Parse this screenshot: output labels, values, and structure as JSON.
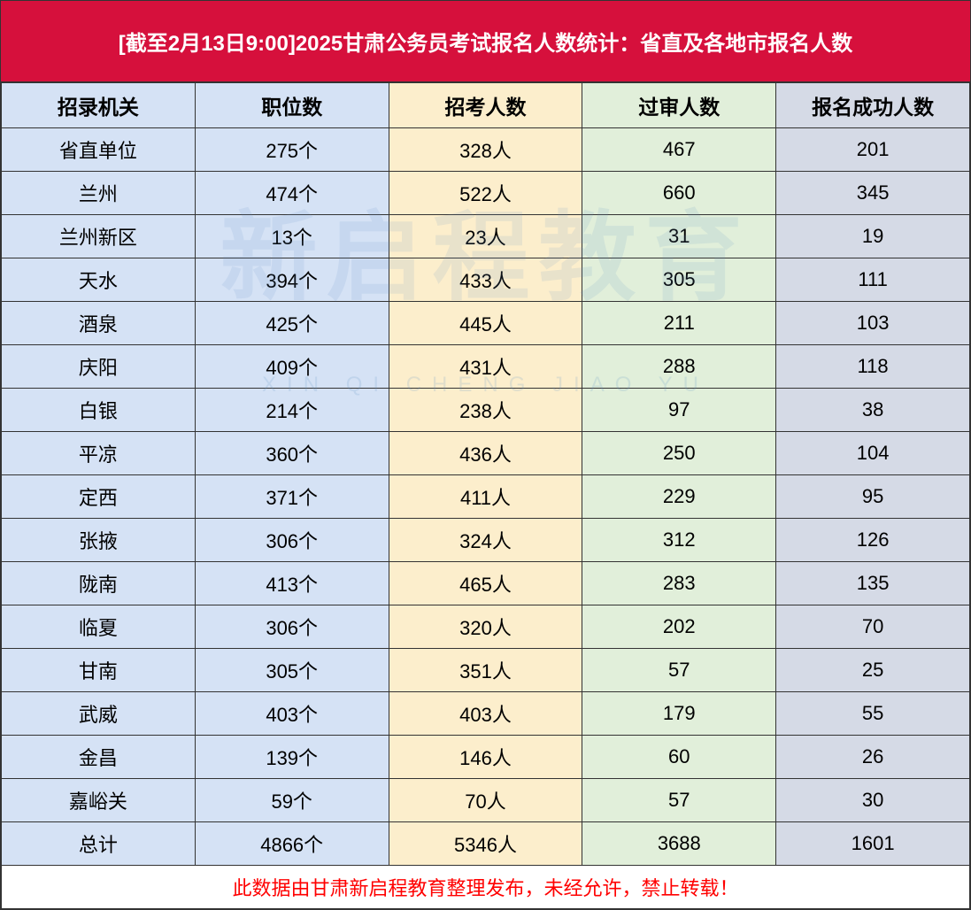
{
  "title": "[截至2月13日9:00]2025甘肃公务员考试报名人数统计：省直及各地市报名人数",
  "columns": [
    "招录机关",
    "职位数",
    "招考人数",
    "过审人数",
    "报名成功人数"
  ],
  "column_colors": [
    "#d5e2f5",
    "#d5e2f5",
    "#fceecc",
    "#e1efda",
    "#d5dae6"
  ],
  "title_bg": "#d6103c",
  "title_color": "#ffffff",
  "border_color": "#333333",
  "footer_color": "#ff0000",
  "rows": [
    {
      "c0": "省直单位",
      "c1": "275个",
      "c2": "328人",
      "c3": "467",
      "c4": "201"
    },
    {
      "c0": "兰州",
      "c1": "474个",
      "c2": "522人",
      "c3": "660",
      "c4": "345"
    },
    {
      "c0": "兰州新区",
      "c1": "13个",
      "c2": "23人",
      "c3": "31",
      "c4": "19"
    },
    {
      "c0": "天水",
      "c1": "394个",
      "c2": "433人",
      "c3": "305",
      "c4": "111"
    },
    {
      "c0": "酒泉",
      "c1": "425个",
      "c2": "445人",
      "c3": "211",
      "c4": "103"
    },
    {
      "c0": "庆阳",
      "c1": "409个",
      "c2": "431人",
      "c3": "288",
      "c4": "118"
    },
    {
      "c0": "白银",
      "c1": "214个",
      "c2": "238人",
      "c3": "97",
      "c4": "38"
    },
    {
      "c0": "平凉",
      "c1": "360个",
      "c2": "436人",
      "c3": "250",
      "c4": "104"
    },
    {
      "c0": "定西",
      "c1": "371个",
      "c2": "411人",
      "c3": "229",
      "c4": "95"
    },
    {
      "c0": "张掖",
      "c1": "306个",
      "c2": "324人",
      "c3": "312",
      "c4": "126"
    },
    {
      "c0": "陇南",
      "c1": "413个",
      "c2": "465人",
      "c3": "283",
      "c4": "135"
    },
    {
      "c0": "临夏",
      "c1": "306个",
      "c2": "320人",
      "c3": "202",
      "c4": "70"
    },
    {
      "c0": "甘南",
      "c1": "305个",
      "c2": "351人",
      "c3": "57",
      "c4": "25"
    },
    {
      "c0": "武威",
      "c1": "403个",
      "c2": "403人",
      "c3": "179",
      "c4": "55"
    },
    {
      "c0": "金昌",
      "c1": "139个",
      "c2": "146人",
      "c3": "60",
      "c4": "26"
    },
    {
      "c0": "嘉峪关",
      "c1": "59个",
      "c2": "70人",
      "c3": "57",
      "c4": "30"
    },
    {
      "c0": "总计",
      "c1": "4866个",
      "c2": "5346人",
      "c3": "3688",
      "c4": "1601"
    }
  ],
  "footer_text": "此数据由甘肃新启程教育整理发布，未经允许，禁止转载！",
  "watermark_main": "新启程教育",
  "watermark_sub": "XIN QI CHENG JIAO YU"
}
